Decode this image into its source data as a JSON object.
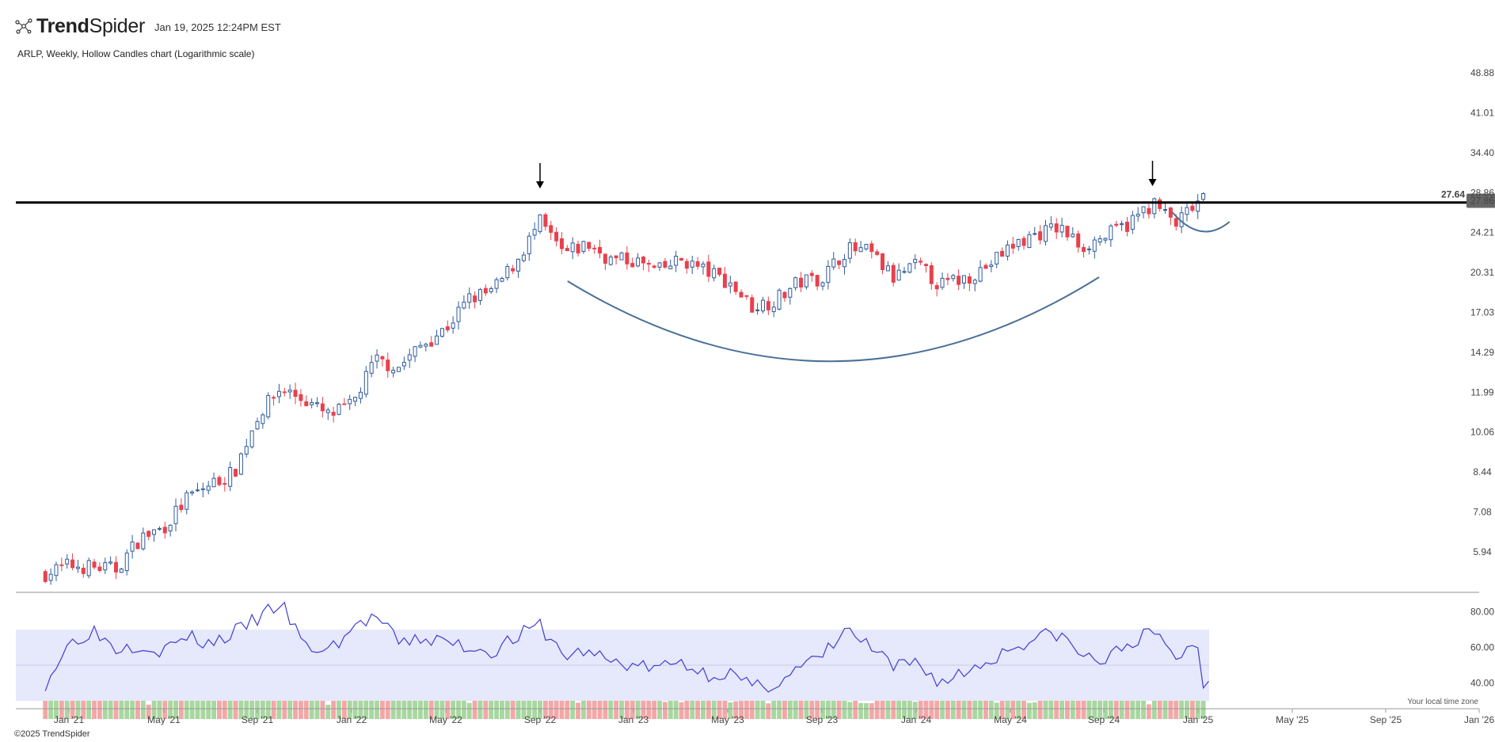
{
  "brand": {
    "name_bold": "Trend",
    "name_regular": "Spider",
    "logo_icon": "trendspider-logo-icon",
    "timestamp": "Jan 19, 2025 12:24PM EST"
  },
  "copyright": "©2025 TrendSpider",
  "timezone_note": "Your local time zone",
  "chart_data": {
    "type": "candlestick",
    "title": "ARLP, Weekly, Hollow Candles chart (Logarithmic scale)",
    "symbol": "ARLP",
    "interval": "Weekly",
    "scale": "log",
    "price_axis_ticks": [
      "48.88",
      "41.01",
      "34.40",
      "28.86",
      "24.21",
      "20.31",
      "17.03",
      "14.29",
      "11.99",
      "10.06",
      "8.44",
      "7.08",
      "5.94"
    ],
    "price_axis_range": [
      5.2,
      51
    ],
    "time_axis_ticks": [
      "Jan '21",
      "May '21",
      "Sep '21",
      "Jan '22",
      "May '22",
      "Sep '22",
      "Jan '23",
      "May '23",
      "Sep '23",
      "Jan '24",
      "May '24",
      "Sep '24",
      "Jan '25",
      "May '25",
      "Sep '25",
      "Jan '26"
    ],
    "current_price": "27.86",
    "horizontal_line": {
      "value": "27.64"
    },
    "annotations": [
      {
        "type": "arrow-down",
        "date": "Sep '22"
      },
      {
        "type": "arrow-down",
        "date": "Nov '24"
      },
      {
        "type": "cup-curve",
        "from": "Oct '22",
        "to": "Sep '24"
      },
      {
        "type": "handle-curve",
        "from": "Nov '24",
        "to": "Feb '25"
      }
    ],
    "price_anchors": [
      [
        "Dec '20",
        5.4
      ],
      [
        "Jan '21",
        5.6
      ],
      [
        "Mar '21",
        5.5
      ],
      [
        "Apr '21",
        6.3
      ],
      [
        "May '21",
        6.6
      ],
      [
        "Jun '21",
        7.5
      ],
      [
        "Jul '21",
        8.0
      ],
      [
        "Aug '21",
        8.4
      ],
      [
        "Sep '21",
        10.8
      ],
      [
        "Oct '21",
        12.2
      ],
      [
        "Nov '21",
        11.6
      ],
      [
        "Dec '21",
        10.8
      ],
      [
        "Jan '22",
        11.3
      ],
      [
        "Feb '22",
        13.8
      ],
      [
        "Mar '22",
        13.4
      ],
      [
        "Apr '22",
        14.8
      ],
      [
        "May '22",
        15.9
      ],
      [
        "Jun '22",
        18.1
      ],
      [
        "Jul '22",
        18.7
      ],
      [
        "Aug '22",
        21.4
      ],
      [
        "Sep '22",
        25.3
      ],
      [
        "Oct '22",
        22.0
      ],
      [
        "Nov '22",
        23.0
      ],
      [
        "Dec '22",
        21.5
      ],
      [
        "Jan '23",
        21.4
      ],
      [
        "Feb '23",
        20.4
      ],
      [
        "Mar '23",
        21.5
      ],
      [
        "Apr '23",
        20.5
      ],
      [
        "May '23",
        19.5
      ],
      [
        "Jun '23",
        17.5
      ],
      [
        "Jul '23",
        18.0
      ],
      [
        "Aug '23",
        19.5
      ],
      [
        "Sep '23",
        19.9
      ],
      [
        "Oct '23",
        22.5
      ],
      [
        "Nov '23",
        22.2
      ],
      [
        "Dec '23",
        19.8
      ],
      [
        "Jan '24",
        21.0
      ],
      [
        "Feb '24",
        19.2
      ],
      [
        "Mar '24",
        19.8
      ],
      [
        "Apr '24",
        20.9
      ],
      [
        "May '24",
        22.8
      ],
      [
        "Jun '24",
        24.0
      ],
      [
        "Jul '24",
        24.8
      ],
      [
        "Aug '24",
        22.8
      ],
      [
        "Sep '24",
        23.8
      ],
      [
        "Oct '24",
        25.2
      ],
      [
        "Nov '24",
        27.6
      ],
      [
        "Dec '24",
        25.1
      ],
      [
        "Jan '25",
        27.86
      ]
    ],
    "volume": {
      "description": "weekly volume bars, green for up weeks, red for down weeks"
    },
    "rsi": {
      "axis_ticks": [
        "80.00",
        "60.00",
        "40.00"
      ],
      "range": [
        30,
        90
      ],
      "upper_band": 70,
      "lower_band": 30,
      "mid_line": 50,
      "anchors": [
        [
          "Dec '20",
          40
        ],
        [
          "Jan '21",
          62
        ],
        [
          "Feb '21",
          70
        ],
        [
          "Mar '21",
          60
        ],
        [
          "Apr '21",
          62
        ],
        [
          "May '21",
          58
        ],
        [
          "Jun '21",
          66
        ],
        [
          "Jul '21",
          62
        ],
        [
          "Aug '21",
          68
        ],
        [
          "Sep '21",
          76
        ],
        [
          "Oct '21",
          85
        ],
        [
          "Nov '21",
          60
        ],
        [
          "Dec '21",
          58
        ],
        [
          "Jan '22",
          70
        ],
        [
          "Feb '22",
          78
        ],
        [
          "Mar '22",
          62
        ],
        [
          "Apr '22",
          65
        ],
        [
          "May '22",
          63
        ],
        [
          "Jun '22",
          60
        ],
        [
          "Jul '22",
          58
        ],
        [
          "Aug '22",
          66
        ],
        [
          "Sep '22",
          72
        ],
        [
          "Oct '22",
          55
        ],
        [
          "Nov '22",
          58
        ],
        [
          "Dec '22",
          52
        ],
        [
          "Jan '23",
          50
        ],
        [
          "Feb '23",
          48
        ],
        [
          "Mar '23",
          52
        ],
        [
          "Apr '23",
          45
        ],
        [
          "May '23",
          46
        ],
        [
          "Jun '23",
          37
        ],
        [
          "Jul '23",
          40
        ],
        [
          "Aug '23",
          48
        ],
        [
          "Sep '23",
          55
        ],
        [
          "Oct '23",
          70
        ],
        [
          "Nov '23",
          60
        ],
        [
          "Dec '23",
          48
        ],
        [
          "Jan '24",
          52
        ],
        [
          "Feb '24",
          40
        ],
        [
          "Mar '24",
          46
        ],
        [
          "Apr '24",
          52
        ],
        [
          "May '24",
          60
        ],
        [
          "Jun '24",
          65
        ],
        [
          "Jul '24",
          68
        ],
        [
          "Aug '24",
          55
        ],
        [
          "Sep '24",
          52
        ],
        [
          "Oct '24",
          63
        ],
        [
          "Nov '24",
          68
        ],
        [
          "Dec '24",
          55
        ],
        [
          "Jan '25",
          62
        ]
      ]
    },
    "colors": {
      "up_candle": "#2f5b9c",
      "down_candle": "#e8414c",
      "volume_up": "#a8d7a0",
      "volume_down": "#f4a7a8",
      "rsi_line": "#3f3fd0",
      "rsi_band": "#e6e8fb",
      "cup_curve": "#4a7099",
      "horizontal_line": "#000000",
      "price_badge": "#666666"
    }
  }
}
